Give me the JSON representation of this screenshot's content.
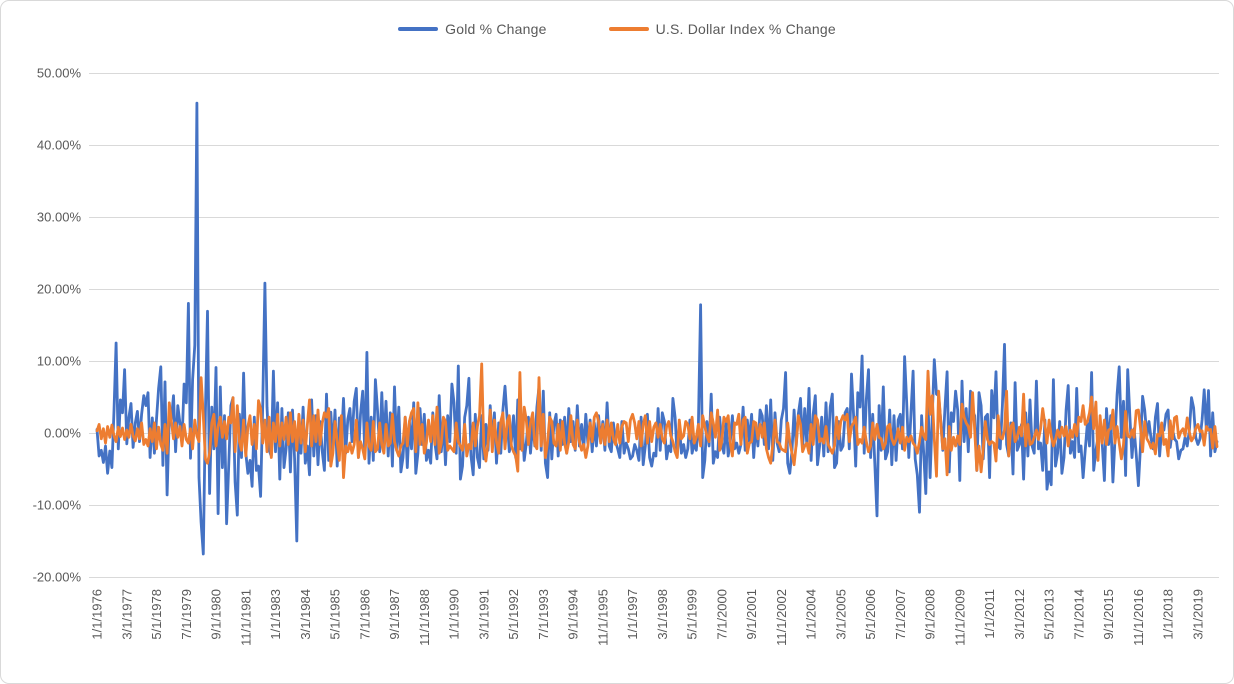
{
  "colors": {
    "gold_line": "#4472C4",
    "usd_line": "#ED7D31",
    "gridline": "#D9D9D9",
    "axis_text": "#595959",
    "legend_text": "#595959",
    "background": "#FFFFFF",
    "border": "#D9D9D9"
  },
  "chart_data": {
    "type": "line",
    "title": "",
    "legend_position": "top",
    "grid": true,
    "x_unit": "monthly",
    "x_tick_interval_months": 14,
    "x_tick_labels": [
      "1/1/1976",
      "3/1/1977",
      "5/1/1978",
      "7/1/1979",
      "9/1/1980",
      "11/1/1981",
      "1/1/1983",
      "3/1/1984",
      "5/1/1985",
      "7/1/1986",
      "9/1/1987",
      "11/1/1988",
      "1/1/1990",
      "3/1/1991",
      "5/1/1992",
      "7/1/1993",
      "9/1/1994",
      "11/1/1995",
      "1/1/1997",
      "3/1/1998",
      "5/1/1999",
      "7/1/2000",
      "9/1/2001",
      "11/1/2002",
      "1/1/2004",
      "3/1/2005",
      "5/1/2006",
      "7/1/2007",
      "9/1/2008",
      "11/1/2009",
      "1/1/2011",
      "3/1/2012",
      "5/1/2013",
      "7/1/2014",
      "9/1/2015",
      "11/1/2016",
      "1/1/2018",
      "3/1/2019"
    ],
    "y_tick_values": [
      50,
      40,
      30,
      20,
      10,
      0,
      -10,
      -20
    ],
    "y_tick_labels": [
      "50.00%",
      "40.00%",
      "30.00%",
      "20.00%",
      "10.00%",
      "0.00%",
      "-10.00%",
      "-20.00%"
    ],
    "ylim": [
      -20,
      50
    ],
    "series": [
      {
        "name": "Gold % Change",
        "color": "#4472C4",
        "values": [
          0.5,
          -3.2,
          -2.4,
          -4.1,
          -1.8,
          -5.6,
          -2.5,
          -4.8,
          3.1,
          12.5,
          -2.2,
          4.6,
          2.8,
          8.8,
          -1.5,
          2.2,
          4.1,
          -2.0,
          1.4,
          3.0,
          -1.2,
          2.6,
          5.2,
          3.8,
          5.6,
          -3.4,
          2.1,
          -2.8,
          1.9,
          6.2,
          9.2,
          -4.5,
          7.1,
          -8.6,
          2.4,
          1.8,
          5.2,
          -2.6,
          3.8,
          1.4,
          -1.2,
          6.8,
          4.2,
          18.0,
          -3.5,
          7.4,
          12.2,
          45.8,
          -6.2,
          -12.4,
          -16.8,
          2.8,
          16.9,
          -8.4,
          3.6,
          -2.2,
          9.1,
          -11.2,
          6.4,
          -4.8,
          2.4,
          -12.6,
          -4.2,
          3.8,
          4.9,
          -6.8,
          -11.4,
          2.6,
          -3.4,
          8.3,
          -2.8,
          -5.6,
          -3.8,
          -7.4,
          2.2,
          -5.2,
          -4.6,
          -8.8,
          4.4,
          20.8,
          3.6,
          -2.4,
          -3.2,
          8.6,
          -2.6,
          4.2,
          -6.4,
          3.4,
          -4.8,
          -2.2,
          2.8,
          -5.4,
          3.2,
          -3.6,
          -15.0,
          2.4,
          -2.8,
          3.6,
          -4.2,
          -1.8,
          -5.8,
          4.6,
          -3.2,
          2.4,
          -4.4,
          1.6,
          -2.6,
          -5.2,
          5.4,
          -3.8,
          2.9,
          -2.4,
          3.2,
          -4.6,
          2.1,
          -1.4,
          4.8,
          -2.8,
          1.9,
          3.4,
          -1.2,
          4.4,
          6.2,
          -3.4,
          2.6,
          5.8,
          -2.8,
          11.2,
          -4.2,
          2.2,
          -3.8,
          7.4,
          3.2,
          -2.6,
          5.6,
          -1.8,
          4.4,
          -3.2,
          2.8,
          -4.6,
          6.4,
          -2.4,
          3.6,
          -5.4,
          -3.4,
          2.2,
          -4.8,
          1.6,
          -2.2,
          4.2,
          -5.6,
          -2.8,
          3.4,
          -1.6,
          2.6,
          -3.8,
          -2.4,
          -4.2,
          2.8,
          -1.4,
          -3.6,
          5.2,
          -2.6,
          1.8,
          -4.4,
          2.4,
          -1.2,
          6.8,
          4.2,
          -2.8,
          9.3,
          -6.4,
          -4.6,
          2.2,
          3.8,
          7.6,
          -3.2,
          -5.8,
          2.6,
          -3.4,
          -4.8,
          2.4,
          -3.6,
          1.2,
          -2.4,
          3.8,
          -1.6,
          2.8,
          -4.2,
          1.4,
          -2.8,
          3.2,
          6.5,
          1.8,
          -2.6,
          -1.2,
          2.4,
          -3.4,
          4.6,
          -2.2,
          1.6,
          -3.8,
          -1.4,
          2.2,
          -2.8,
          1.4,
          -1.8,
          3.6,
          6.4,
          -2.4,
          5.8,
          -4.2,
          -6.2,
          2.8,
          -3.6,
          1.2,
          2.6,
          -3.2,
          1.8,
          -1.6,
          2.2,
          -2.8,
          3.4,
          -1.2,
          1.6,
          -2.4,
          3.8,
          -1.8,
          1.2,
          -2.2,
          2.6,
          -1.4,
          1.8,
          -2.6,
          1.4,
          -1.8,
          2.4,
          -1.2,
          1.6,
          -2.4,
          4.2,
          -1.8,
          -2.6,
          1.4,
          -1.2,
          -2.2,
          -3.4,
          1.6,
          -2.8,
          -1.4,
          -2.2,
          -3.6,
          -3.2,
          -1.6,
          -2.4,
          -3.8,
          2.2,
          -4.4,
          -1.8,
          2.6,
          -3.4,
          -4.6,
          -2.8,
          -3.2,
          3.4,
          -2.4,
          2.8,
          1.6,
          -3.6,
          -1.8,
          -2.6,
          4.8,
          2.2,
          -3.2,
          1.4,
          -2.8,
          -1.6,
          -3.4,
          -2.2,
          1.8,
          -2.8,
          -1.4,
          -2.4,
          1.2,
          17.8,
          -6.2,
          -3.8,
          1.6,
          -1.8,
          5.4,
          -4.2,
          -2.6,
          -3.4,
          2.2,
          -1.6,
          -2.8,
          1.4,
          -3.2,
          -1.2,
          2.4,
          -2.2,
          -1.4,
          -2.8,
          -1.6,
          3.6,
          -2.4,
          1.8,
          -1.2,
          2.6,
          -3.4,
          1.2,
          -1.8,
          3.2,
          2.4,
          -1.6,
          3.8,
          -2.2,
          4.6,
          -3.8,
          2.8,
          -1.4,
          -2.6,
          1.8,
          3.4,
          8.4,
          -4.2,
          -5.6,
          -2.4,
          3.2,
          -1.8,
          2.6,
          4.8,
          -2.2,
          3.4,
          -1.6,
          6.2,
          -3.8,
          2.6,
          5.2,
          -4.4,
          -1.8,
          2.2,
          -3.2,
          4.2,
          -2.6,
          3.6,
          5.4,
          -4.8,
          -4.2,
          1.6,
          -2.4,
          -1.8,
          2.8,
          3.4,
          -2.2,
          8.2,
          2.4,
          -4.6,
          5.6,
          3.6,
          10.7,
          -2.8,
          4.6,
          8.8,
          -3.4,
          2.6,
          -4.2,
          -11.5,
          3.8,
          -2.4,
          6.4,
          -3.6,
          -2.6,
          3.2,
          -4.4,
          2.4,
          -3.8,
          1.8,
          2.6,
          -2.2,
          10.6,
          4.2,
          -3.4,
          2.8,
          8.6,
          -3.6,
          -5.8,
          -11.0,
          2.4,
          -2.8,
          -8.4,
          4.6,
          -6.2,
          2.2,
          10.2,
          5.4,
          5.2,
          1.8,
          -2.4,
          3.6,
          8.5,
          -5.4,
          2.8,
          1.6,
          5.8,
          3.2,
          -6.6,
          7.2,
          -1.2,
          3.4,
          -2.6,
          5.8,
          3.0,
          2.4,
          -5.2,
          5.6,
          3.8,
          -3.6,
          2.2,
          2.6,
          -6.2,
          5.9,
          2.1,
          8.5,
          -1.8,
          -2.2,
          3.8,
          12.3,
          -1.6,
          -3.2,
          1.4,
          -5.7,
          7.0,
          -2.4,
          -1.6,
          1.2,
          -6.4,
          2.8,
          -3.2,
          4.6,
          -1.8,
          -2.8,
          7.2,
          -2.2,
          -1.4,
          -5.2,
          1.8,
          -7.8,
          -5.4,
          -7.2,
          7.4,
          -4.6,
          -2.8,
          1.6,
          -5.6,
          -3.4,
          3.2,
          6.6,
          -2.8,
          -1.2,
          -3.4,
          6.2,
          -2.6,
          -1.8,
          -6.2,
          -2.4,
          1.4,
          -1.8,
          8.4,
          -5.2,
          -2.4,
          -0.6,
          1.2,
          -1.4,
          -6.6,
          3.4,
          -1.6,
          2.4,
          -6.8,
          -0.8,
          5.4,
          9.2,
          -0.6,
          4.4,
          -5.9,
          8.8,
          2.2,
          -3.4,
          0.6,
          -2.9,
          -7.3,
          -1.8,
          5.1,
          3.2,
          -0.4,
          1.6,
          -0.8,
          -2.2,
          2.2,
          4.1,
          -3.2,
          0.6,
          0.4,
          2.6,
          3.2,
          -2.0,
          0.6,
          -0.8,
          -1.2,
          -3.6,
          -2.4,
          -2.2,
          -0.6,
          -1.8,
          0.4,
          4.9,
          3.5,
          -0.6,
          -1.6,
          -0.8,
          1.8,
          6.0,
          0.3,
          5.9,
          -3.2,
          2.8,
          -2.6,
          -1.2
        ]
      },
      {
        "name": "U.S. Dollar Index % Change",
        "color": "#ED7D31",
        "values": [
          0.3,
          1.2,
          -0.8,
          0.6,
          -1.4,
          0.9,
          -0.6,
          1.1,
          -0.4,
          -1.2,
          0.8,
          -0.5,
          0.7,
          -0.9,
          0.4,
          -0.6,
          1.2,
          -0.4,
          -1.1,
          0.6,
          -0.8,
          1.4,
          -1.6,
          -0.9,
          -1.8,
          0.6,
          -1.2,
          1.4,
          -2.2,
          0.8,
          -1.6,
          -2.4,
          1.2,
          -2.8,
          4.2,
          1.6,
          -0.8,
          1.4,
          -0.6,
          0.9,
          -1.8,
          1.2,
          -0.9,
          -1.4,
          0.6,
          -2.2,
          1.8,
          -0.4,
          -1.2,
          7.7,
          2.4,
          -3.6,
          -4.2,
          -2.8,
          1.4,
          2.6,
          -1.8,
          0.9,
          2.2,
          -0.6,
          1.6,
          -0.8,
          2.2,
          1.4,
          4.9,
          -2.6,
          3.8,
          -1.2,
          -2.4,
          1.8,
          -3.2,
          0.9,
          2.4,
          -1.6,
          1.2,
          -2.2,
          4.5,
          3.4,
          -1.4,
          1.8,
          -2.6,
          2.2,
          -3.4,
          1.4,
          -1.2,
          2.6,
          -1.8,
          1.4,
          -0.9,
          2.2,
          -1.6,
          2.8,
          -1.2,
          1.6,
          -2.4,
          2.6,
          -1.4,
          1.8,
          -2.6,
          1.2,
          4.6,
          -1.8,
          2.4,
          -1.2,
          3.2,
          -1.6,
          1.4,
          2.8,
          2.2,
          3.4,
          -4.6,
          -2.8,
          1.6,
          -1.2,
          -3.8,
          2.4,
          -6.2,
          -1.8,
          -2.6,
          -1.4,
          -2.8,
          -1.6,
          1.8,
          -3.4,
          -1.2,
          -2.2,
          -3.6,
          1.4,
          -1.8,
          -2.4,
          1.6,
          -2.6,
          -2.2,
          1.4,
          -1.6,
          -2.8,
          1.2,
          -1.8,
          -1.4,
          2.6,
          -1.2,
          -2.4,
          -3.2,
          -1.8,
          -1.4,
          2.2,
          -1.8,
          1.6,
          2.8,
          3.4,
          -2.6,
          4.2,
          -1.6,
          1.2,
          -2.8,
          -1.4,
          1.8,
          -1.2,
          2.4,
          -1.6,
          3.6,
          -2.8,
          -1.4,
          2.2,
          1.6,
          -2.4,
          -1.8,
          -2.2,
          -2.6,
          1.4,
          -1.2,
          -1.8,
          -2.4,
          1.2,
          -3.2,
          -1.6,
          -2.2,
          1.4,
          -1.8,
          0.9,
          2.4,
          9.6,
          -1.8,
          -3.9,
          -1.4,
          3.2,
          -2.6,
          1.8,
          -1.2,
          -2.8,
          1.6,
          2.8,
          -2.2,
          1.6,
          2.4,
          -1.8,
          -2.6,
          -3.2,
          -5.3,
          8.4,
          -2.4,
          3.6,
          1.8,
          -1.6,
          1.4,
          2.8,
          -1.6,
          -2.2,
          7.7,
          -1.8,
          2.6,
          -3.4,
          -1.2,
          2.2,
          1.6,
          -1.4,
          -1.8,
          1.2,
          -2.4,
          1.6,
          -1.4,
          -2.8,
          -1.2,
          2.4,
          -1.6,
          -2.2,
          1.8,
          -1.2,
          -2.4,
          -1.6,
          -3.4,
          -1.8,
          1.4,
          -1.2,
          2.2,
          2.8,
          1.6,
          -1.4,
          1.2,
          -1.6,
          1.8,
          -1.2,
          1.4,
          -0.8,
          -1.6,
          1.2,
          -1.4,
          0.9,
          1.6,
          1.4,
          -1.2,
          1.8,
          2.6,
          1.4,
          -0.8,
          1.6,
          -1.8,
          1.2,
          2.4,
          -1.4,
          1.6,
          -1.2,
          0.8,
          1.4,
          -0.6,
          1.2,
          -0.8,
          -1.4,
          0.9,
          1.6,
          -0.4,
          -1.2,
          -2.6,
          -3.4,
          1.8,
          -0.8,
          -0.4,
          1.6,
          1.2,
          -0.8,
          2.2,
          -1.4,
          -0.6,
          1.2,
          -1.8,
          2.4,
          0.9,
          -0.4,
          -1.2,
          2.8,
          1.4,
          -0.6,
          3.2,
          -2.4,
          -1.2,
          2.2,
          1.6,
          2.4,
          -1.4,
          -3.2,
          1.4,
          1.2,
          2.6,
          -1.6,
          1.8,
          2.2,
          -2.8,
          -1.4,
          -1.2,
          1.6,
          1.4,
          -0.8,
          1.2,
          -0.6,
          1.4,
          -2.2,
          -3.4,
          -4.2,
          -1.6,
          1.8,
          -1.2,
          -1.4,
          -2.2,
          -2.4,
          -2.6,
          1.4,
          -1.2,
          -2.8,
          -4.4,
          -1.6,
          2.4,
          1.2,
          -2.6,
          -1.8,
          -1.4,
          -2.8,
          1.2,
          -1.6,
          2.4,
          1.8,
          -1.2,
          -0.8,
          -1.4,
          0.9,
          -1.6,
          -2.2,
          -2.8,
          -1.8,
          2.2,
          -0.8,
          1.6,
          2.4,
          1.8,
          2.6,
          -1.2,
          0.9,
          1.4,
          2.2,
          -1.6,
          -0.9,
          -1.4,
          0.8,
          -1.2,
          -2.6,
          -1.8,
          1.4,
          -0.9,
          1.2,
          -0.6,
          -0.8,
          -2.2,
          -1.4,
          0.9,
          1.2,
          -0.8,
          -1.6,
          -0.9,
          0.6,
          -1.4,
          0.8,
          -2.4,
          -0.6,
          -1.2,
          -0.4,
          -1.4,
          -1.8,
          -2.8,
          -1.2,
          0.8,
          -0.4,
          -0.9,
          8.6,
          2.6,
          5.2,
          -0.8,
          -6.0,
          5.8,
          1.6,
          -2.2,
          -0.8,
          -5.8,
          0.9,
          -2.4,
          -0.6,
          -1.8,
          -0.4,
          -1.6,
          4.0,
          2.2,
          1.4,
          0.9,
          -0.6,
          5.6,
          0.4,
          -5.2,
          -1.8,
          -5.4,
          -2.2,
          1.6,
          -0.9,
          -1.6,
          -1.2,
          -1.4,
          -3.9,
          2.4,
          -0.6,
          -0.8,
          0.4,
          5.8,
          -3.2,
          0.9,
          1.4,
          -1.2,
          -0.6,
          0.8,
          -0.4,
          5.4,
          -1.8,
          1.2,
          -1.6,
          -1.4,
          -0.6,
          0.4,
          -0.9,
          0.6,
          3.4,
          1.2,
          -1.4,
          1.8,
          -0.4,
          -1.8,
          -0.9,
          0.4,
          -0.6,
          0.8,
          -0.4,
          0.9,
          -1.8,
          0.4,
          -0.6,
          1.2,
          -0.4,
          2.2,
          1.6,
          3.8,
          1.2,
          1.6,
          2.8,
          5.0,
          0.6,
          4.3,
          -3.8,
          2.4,
          -1.4,
          1.8,
          -1.6,
          0.4,
          0.6,
          3.2,
          -1.4,
          0.9,
          -1.4,
          -3.6,
          -1.6,
          3.0,
          -0.4,
          -0.6,
          0.4,
          -0.6,
          3.1,
          3.2,
          0.7,
          -2.6,
          1.6,
          -0.8,
          -1.3,
          -2.1,
          -1.4,
          -2.9,
          -0.2,
          -0.4,
          1.4,
          -1.6,
          -0.9,
          -3.2,
          1.7,
          -0.8,
          2.1,
          2.3,
          -0.7,
          0.2,
          0.6,
          -0.4,
          2.1,
          0.1,
          -1.1,
          -0.6,
          0.6,
          1.2,
          0.2,
          0.3,
          -1.7,
          0.9,
          0.4,
          0.5,
          -2.1,
          0.9,
          -1.9
        ]
      }
    ]
  }
}
